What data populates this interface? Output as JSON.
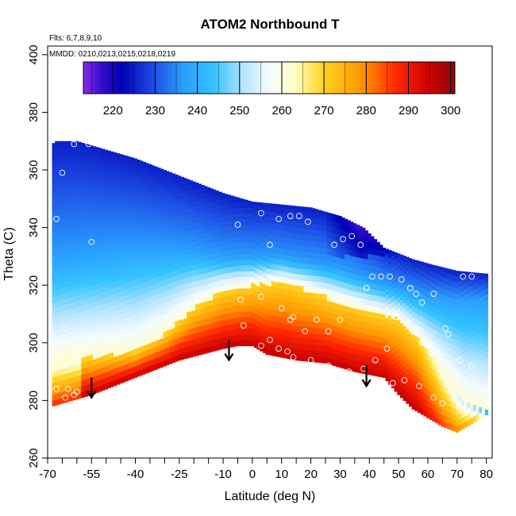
{
  "chart_data": {
    "type": "heatmap",
    "title": "ATOM2 Northbound T",
    "subtitle_lines": [
      "Flts: 6,7,8,9,10",
      "MMDD: 0210,0213,0215,0218,0219"
    ],
    "xlabel": "Latitude (deg N)",
    "ylabel": "Theta (C)",
    "xlim": [
      -70,
      82
    ],
    "ylim": [
      260,
      403
    ],
    "x_ticks": [
      -70,
      -55,
      -40,
      -25,
      -10,
      0,
      10,
      20,
      30,
      40,
      50,
      60,
      70,
      80
    ],
    "y_ticks": [
      260,
      280,
      300,
      320,
      340,
      360,
      380,
      400
    ],
    "colorbar": {
      "range": [
        213,
        301
      ],
      "ticks": [
        220,
        230,
        240,
        250,
        260,
        270,
        280,
        290,
        300
      ],
      "stops": [
        {
          "v": 213,
          "c": "#8a2be2"
        },
        {
          "v": 217,
          "c": "#3b0fd0"
        },
        {
          "v": 222,
          "c": "#0000b4"
        },
        {
          "v": 230,
          "c": "#1e52e6"
        },
        {
          "v": 237,
          "c": "#2aa0ff"
        },
        {
          "v": 244,
          "c": "#35c3ff"
        },
        {
          "v": 251,
          "c": "#b5e5ff"
        },
        {
          "v": 257,
          "c": "#f4fbff"
        },
        {
          "v": 263,
          "c": "#ffffc8"
        },
        {
          "v": 270,
          "c": "#ffd21e"
        },
        {
          "v": 279,
          "c": "#ff9600"
        },
        {
          "v": 287,
          "c": "#ff2800"
        },
        {
          "v": 295,
          "c": "#cd0000"
        },
        {
          "v": 301,
          "c": "#8c0a0a"
        }
      ]
    },
    "domain_upper": [
      [
        -68.5,
        369
      ],
      [
        -67,
        370
      ],
      [
        -60,
        370
      ],
      [
        -50,
        367
      ],
      [
        -40,
        364
      ],
      [
        -30,
        360
      ],
      [
        -20,
        356
      ],
      [
        -10,
        352
      ],
      [
        0,
        349
      ],
      [
        10,
        348
      ],
      [
        20,
        347
      ],
      [
        30,
        344
      ],
      [
        38,
        340
      ],
      [
        45,
        333
      ],
      [
        55,
        329
      ],
      [
        62,
        327
      ],
      [
        70,
        325
      ],
      [
        80,
        324
      ]
    ],
    "domain_lower": [
      [
        -68.5,
        278
      ],
      [
        -55,
        282
      ],
      [
        -40,
        288
      ],
      [
        -25,
        294
      ],
      [
        -10,
        298
      ],
      [
        -5,
        299
      ],
      [
        0,
        299
      ],
      [
        5,
        296
      ],
      [
        15,
        294
      ],
      [
        25,
        293
      ],
      [
        35,
        290
      ],
      [
        45,
        288
      ],
      [
        50,
        282
      ],
      [
        55,
        277
      ],
      [
        60,
        274
      ],
      [
        65,
        271
      ],
      [
        70,
        269
      ],
      [
        80,
        275
      ]
    ],
    "warm_core_top": [
      [
        -68.5,
        293
      ],
      [
        -55,
        295
      ],
      [
        -40,
        297
      ],
      [
        -30,
        303
      ],
      [
        -20,
        312
      ],
      [
        -10,
        318
      ],
      [
        0,
        320
      ],
      [
        10,
        321
      ],
      [
        20,
        318
      ],
      [
        30,
        314
      ],
      [
        40,
        311
      ],
      [
        50,
        308
      ],
      [
        58,
        300
      ],
      [
        65,
        290
      ],
      [
        72,
        280
      ],
      [
        80,
        276
      ]
    ],
    "cold_layer_top": [
      [
        -68.5,
        330
      ],
      [
        -50,
        332
      ],
      [
        -40,
        333
      ],
      [
        -30,
        333
      ],
      [
        -20,
        332
      ],
      [
        -10,
        330
      ],
      [
        0,
        330
      ],
      [
        10,
        330
      ],
      [
        20,
        328
      ],
      [
        30,
        326
      ],
      [
        40,
        322
      ],
      [
        50,
        319
      ],
      [
        60,
        316
      ],
      [
        70,
        315
      ],
      [
        80,
        315
      ]
    ],
    "arrows": [
      {
        "lat": -55,
        "theta": 288
      },
      {
        "lat": -8,
        "theta": 301
      },
      {
        "lat": 39,
        "theta": 292
      }
    ],
    "observations": [
      [
        -67,
        343
      ],
      [
        -65,
        359
      ],
      [
        -61,
        369
      ],
      [
        -56,
        369
      ],
      [
        -55,
        335
      ],
      [
        -64,
        305
      ],
      [
        -67,
        296
      ],
      [
        -59,
        297
      ],
      [
        -67,
        284
      ],
      [
        -63,
        284
      ],
      [
        -61,
        282
      ],
      [
        -64,
        281
      ],
      [
        -60,
        283
      ],
      [
        -5,
        341
      ],
      [
        3,
        345
      ],
      [
        6,
        334
      ],
      [
        9,
        343
      ],
      [
        13,
        344
      ],
      [
        16,
        344
      ],
      [
        19,
        342
      ],
      [
        25,
        347
      ],
      [
        28,
        334
      ],
      [
        31,
        336
      ],
      [
        34,
        337
      ],
      [
        37,
        334
      ],
      [
        41,
        323
      ],
      [
        44,
        323
      ],
      [
        47,
        323
      ],
      [
        51,
        322
      ],
      [
        54,
        319
      ],
      [
        56,
        317
      ],
      [
        58,
        314
      ],
      [
        62,
        317
      ],
      [
        72,
        323
      ],
      [
        75,
        323
      ],
      [
        -4,
        315
      ],
      [
        3,
        316
      ],
      [
        8,
        322
      ],
      [
        10,
        312
      ],
      [
        13,
        308
      ],
      [
        14,
        309
      ],
      [
        18,
        304
      ],
      [
        22,
        308
      ],
      [
        26,
        304
      ],
      [
        30,
        308
      ],
      [
        39,
        319
      ],
      [
        49,
        309
      ],
      [
        53,
        307
      ],
      [
        55,
        304
      ],
      [
        58,
        300
      ],
      [
        60,
        299
      ],
      [
        63,
        297
      ],
      [
        66,
        305
      ],
      [
        67,
        303
      ],
      [
        -3,
        306
      ],
      [
        3,
        299
      ],
      [
        6,
        301
      ],
      [
        9,
        298
      ],
      [
        12,
        297
      ],
      [
        14,
        295
      ],
      [
        20,
        294
      ],
      [
        26,
        292
      ],
      [
        33,
        290
      ],
      [
        38,
        291
      ],
      [
        42,
        294
      ],
      [
        46,
        298
      ],
      [
        48,
        286
      ],
      [
        52,
        287
      ],
      [
        57,
        285
      ],
      [
        62,
        281
      ],
      [
        65,
        279
      ],
      [
        71,
        294
      ],
      [
        75,
        292
      ]
    ]
  }
}
